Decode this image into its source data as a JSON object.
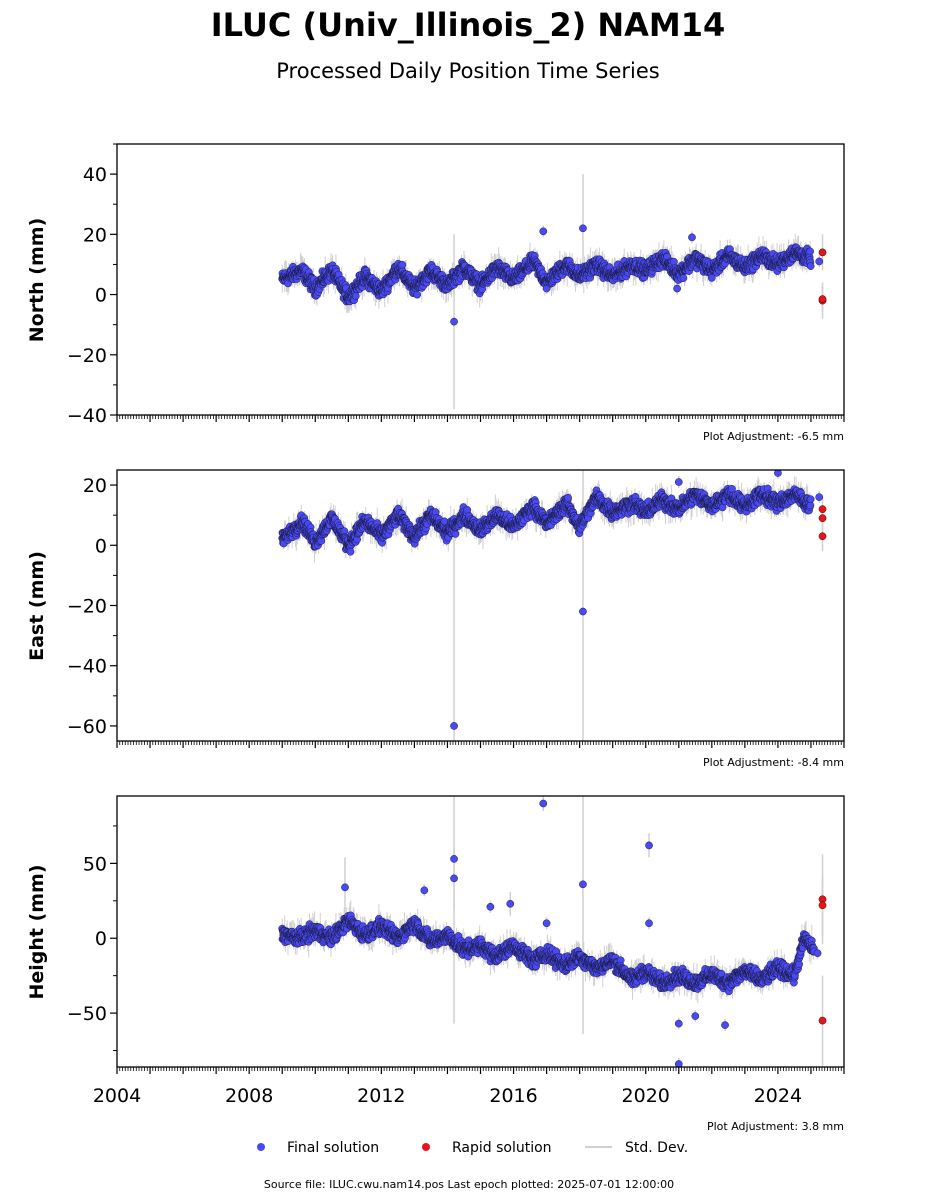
{
  "title": "ILUC (Univ_Illinois_2) NAM14",
  "subtitle": "Processed Daily Position Time Series",
  "legend": {
    "final_label": "Final solution",
    "rapid_label": "Rapid solution",
    "std_label": "Std. Dev."
  },
  "footer": "Source file: ILUC.cwu.nam14.pos  Last epoch plotted: 2025-07-01 12:00:00",
  "colors": {
    "final": "#4a4af5",
    "rapid": "#e8141a",
    "std": "#d0d0d0"
  },
  "chart_data": [
    {
      "type": "scatter",
      "ylabel": "North (mm)",
      "adjustment": "Plot Adjustment: -6.5 mm",
      "xlim": [
        2004,
        2026
      ],
      "ylim": [
        -40,
        50
      ],
      "yticks": [
        -40,
        -20,
        0,
        20,
        40
      ],
      "ytick_labels": [
        "−40",
        "−20",
        "0",
        "20",
        "40"
      ],
      "segments": [
        [
          2009.0,
          5
        ],
        [
          2009.6,
          8
        ],
        [
          2010.0,
          2
        ],
        [
          2010.5,
          8
        ],
        [
          2011.0,
          -1
        ],
        [
          2011.5,
          6
        ],
        [
          2012.0,
          1
        ],
        [
          2012.5,
          9
        ],
        [
          2013.0,
          2
        ],
        [
          2013.5,
          8
        ],
        [
          2014.0,
          3
        ],
        [
          2014.5,
          9
        ],
        [
          2015.0,
          3
        ],
        [
          2015.5,
          9
        ],
        [
          2016.0,
          5
        ],
        [
          2016.6,
          11
        ],
        [
          2017.0,
          4
        ],
        [
          2017.6,
          10
        ],
        [
          2018.0,
          6
        ],
        [
          2018.5,
          10
        ],
        [
          2019.0,
          6
        ],
        [
          2019.6,
          10
        ],
        [
          2020.0,
          8
        ],
        [
          2020.5,
          12
        ],
        [
          2021.0,
          7
        ],
        [
          2021.5,
          12
        ],
        [
          2022.0,
          8
        ],
        [
          2022.5,
          13
        ],
        [
          2023.0,
          9
        ],
        [
          2023.5,
          13
        ],
        [
          2024.0,
          10
        ],
        [
          2024.5,
          14
        ],
        [
          2025.0,
          12
        ]
      ],
      "spread": 3.5,
      "outliers": [
        [
          2014.2,
          -9,
          29
        ],
        [
          2016.9,
          21,
          2
        ],
        [
          2018.1,
          22,
          18
        ],
        [
          2021.4,
          19,
          2
        ],
        [
          2020.95,
          2,
          2
        ],
        [
          2025.25,
          11,
          2
        ]
      ],
      "rapid": [
        [
          2025.35,
          14,
          6
        ],
        [
          2025.35,
          -2,
          6
        ],
        [
          2025.35,
          -1.5,
          4
        ]
      ]
    },
    {
      "type": "scatter",
      "ylabel": "East (mm)",
      "adjustment": "Plot Adjustment: -8.4 mm",
      "xlim": [
        2004,
        2026
      ],
      "ylim": [
        -65,
        25
      ],
      "yticks": [
        -60,
        -40,
        -20,
        0,
        20
      ],
      "ytick_labels": [
        "−60",
        "−40",
        "−20",
        "0",
        "20"
      ],
      "segments": [
        [
          2009.0,
          2
        ],
        [
          2009.6,
          8
        ],
        [
          2010.0,
          1
        ],
        [
          2010.5,
          9
        ],
        [
          2011.0,
          0
        ],
        [
          2011.5,
          8
        ],
        [
          2012.0,
          3
        ],
        [
          2012.5,
          10
        ],
        [
          2013.0,
          3
        ],
        [
          2013.5,
          10
        ],
        [
          2014.0,
          4
        ],
        [
          2014.5,
          10
        ],
        [
          2015.0,
          5
        ],
        [
          2015.5,
          10
        ],
        [
          2016.0,
          6
        ],
        [
          2016.6,
          13
        ],
        [
          2017.0,
          7
        ],
        [
          2017.6,
          14
        ],
        [
          2018.0,
          6
        ],
        [
          2018.5,
          16
        ],
        [
          2019.0,
          11
        ],
        [
          2019.6,
          14
        ],
        [
          2020.0,
          11
        ],
        [
          2020.5,
          15
        ],
        [
          2021.0,
          12
        ],
        [
          2021.5,
          17
        ],
        [
          2022.0,
          13
        ],
        [
          2022.5,
          17
        ],
        [
          2023.0,
          13
        ],
        [
          2023.5,
          17
        ],
        [
          2024.0,
          14
        ],
        [
          2024.5,
          17
        ],
        [
          2025.0,
          13
        ]
      ],
      "spread": 3.5,
      "outliers": [
        [
          2014.2,
          -60,
          72
        ],
        [
          2018.1,
          -22,
          48
        ],
        [
          2024.0,
          24,
          2
        ],
        [
          2021.0,
          21,
          2
        ],
        [
          2025.25,
          16,
          2
        ]
      ],
      "rapid": [
        [
          2025.35,
          12,
          4
        ],
        [
          2025.35,
          9,
          4
        ],
        [
          2025.35,
          3,
          5
        ]
      ]
    },
    {
      "type": "scatter",
      "ylabel": "Height (mm)",
      "adjustment": "Plot Adjustment: 3.8 mm",
      "xlim": [
        2004,
        2026
      ],
      "ylim": [
        -86,
        95
      ],
      "yticks": [
        -50,
        0,
        50
      ],
      "ytick_labels": [
        "−50",
        "0",
        "50"
      ],
      "segments": [
        [
          2009.0,
          3
        ],
        [
          2009.5,
          0
        ],
        [
          2010.0,
          5
        ],
        [
          2010.5,
          0
        ],
        [
          2011.0,
          12
        ],
        [
          2011.5,
          2
        ],
        [
          2012.0,
          8
        ],
        [
          2012.5,
          0
        ],
        [
          2013.0,
          10
        ],
        [
          2013.5,
          -2
        ],
        [
          2014.0,
          2
        ],
        [
          2014.5,
          -8
        ],
        [
          2015.0,
          -5
        ],
        [
          2015.5,
          -12
        ],
        [
          2016.0,
          -5
        ],
        [
          2016.6,
          -15
        ],
        [
          2017.0,
          -10
        ],
        [
          2017.6,
          -18
        ],
        [
          2018.0,
          -12
        ],
        [
          2018.5,
          -20
        ],
        [
          2019.0,
          -15
        ],
        [
          2019.6,
          -28
        ],
        [
          2020.0,
          -22
        ],
        [
          2020.5,
          -30
        ],
        [
          2021.0,
          -25
        ],
        [
          2021.5,
          -30
        ],
        [
          2022.0,
          -24
        ],
        [
          2022.5,
          -30
        ],
        [
          2023.0,
          -22
        ],
        [
          2023.5,
          -28
        ],
        [
          2024.0,
          -20
        ],
        [
          2024.5,
          -25
        ],
        [
          2024.8,
          0
        ],
        [
          2025.1,
          -8
        ]
      ],
      "spread": 7,
      "outliers": [
        [
          2014.2,
          53,
          110
        ],
        [
          2014.2,
          40,
          20
        ],
        [
          2016.9,
          90,
          5
        ],
        [
          2018.1,
          36,
          100
        ],
        [
          2020.1,
          62,
          8
        ],
        [
          2020.1,
          10,
          4
        ],
        [
          2021.0,
          -57,
          4
        ],
        [
          2021.0,
          -84,
          4
        ],
        [
          2021.5,
          -52,
          4
        ],
        [
          2022.4,
          -58,
          4
        ],
        [
          2010.9,
          34,
          20
        ],
        [
          2013.3,
          32,
          4
        ],
        [
          2015.3,
          21,
          4
        ],
        [
          2015.9,
          23,
          8
        ],
        [
          2017.0,
          10,
          4
        ],
        [
          2025.2,
          -10,
          4
        ]
      ],
      "rapid": [
        [
          2025.35,
          26,
          30
        ],
        [
          2025.35,
          22,
          20
        ],
        [
          2025.35,
          -55,
          30
        ]
      ]
    }
  ],
  "xtick_labels": [
    "2004",
    "2008",
    "2012",
    "2016",
    "2020",
    "2024"
  ]
}
